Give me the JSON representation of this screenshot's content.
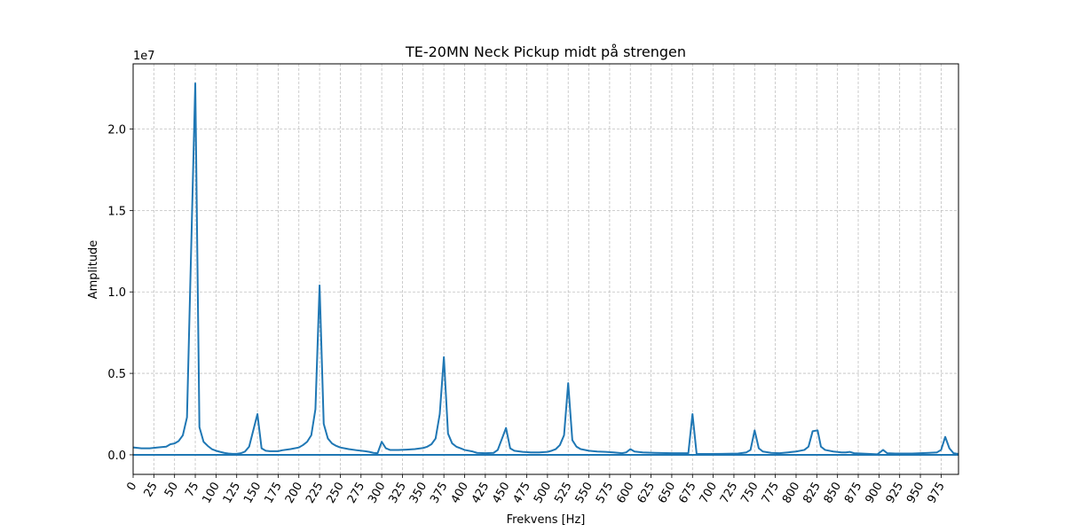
{
  "chart_data": {
    "type": "line",
    "title": "TE-20MN Neck Pickup midt på strengen",
    "xlabel": "Frekvens [Hz]",
    "ylabel": "Amplitude",
    "y_offset_label": "1e7",
    "color": "#1f77b4",
    "grid": true,
    "zero_line": 0,
    "x": [
      0,
      10,
      20,
      30,
      40,
      45,
      50,
      55,
      60,
      65,
      75,
      80,
      85,
      90,
      95,
      100,
      105,
      110,
      115,
      120,
      125,
      130,
      135,
      140,
      150,
      155,
      160,
      165,
      175,
      180,
      190,
      200,
      205,
      210,
      215,
      220,
      225,
      230,
      235,
      240,
      245,
      250,
      260,
      270,
      280,
      285,
      290,
      295,
      300,
      305,
      310,
      320,
      330,
      340,
      350,
      355,
      360,
      365,
      370,
      375,
      380,
      385,
      390,
      395,
      400,
      410,
      415,
      425,
      435,
      440,
      450,
      455,
      460,
      470,
      480,
      490,
      500,
      505,
      510,
      515,
      520,
      525,
      530,
      535,
      540,
      550,
      560,
      570,
      580,
      590,
      595,
      600,
      605,
      615,
      630,
      650,
      670,
      675,
      680,
      690,
      710,
      730,
      740,
      745,
      750,
      755,
      760,
      770,
      780,
      790,
      800,
      810,
      815,
      820,
      826,
      830,
      835,
      845,
      855,
      860,
      865,
      870,
      890,
      898,
      905,
      910,
      920,
      940,
      960,
      970,
      975,
      980,
      985,
      990,
      996
    ],
    "values": [
      450000,
      400000,
      400000,
      450000,
      500000,
      650000,
      700000,
      850000,
      1200000,
      2300000,
      22800000,
      1700000,
      800000,
      550000,
      350000,
      250000,
      180000,
      120000,
      80000,
      60000,
      60000,
      100000,
      200000,
      500000,
      2500000,
      400000,
      250000,
      220000,
      220000,
      280000,
      350000,
      450000,
      600000,
      800000,
      1200000,
      2800000,
      10400000,
      1900000,
      1000000,
      700000,
      550000,
      450000,
      350000,
      280000,
      220000,
      180000,
      120000,
      100000,
      800000,
      400000,
      300000,
      300000,
      320000,
      350000,
      420000,
      500000,
      650000,
      1000000,
      2500000,
      6000000,
      1300000,
      700000,
      500000,
      400000,
      300000,
      200000,
      120000,
      100000,
      120000,
      300000,
      1650000,
      400000,
      250000,
      180000,
      150000,
      150000,
      180000,
      250000,
      350000,
      600000,
      1200000,
      4400000,
      900000,
      500000,
      350000,
      250000,
      200000,
      180000,
      150000,
      100000,
      150000,
      350000,
      200000,
      150000,
      120000,
      100000,
      100000,
      2500000,
      50000,
      50000,
      60000,
      80000,
      150000,
      300000,
      1500000,
      400000,
      200000,
      120000,
      100000,
      150000,
      200000,
      300000,
      500000,
      1450000,
      1500000,
      500000,
      300000,
      200000,
      150000,
      150000,
      180000,
      100000,
      50000,
      30000,
      300000,
      100000,
      80000,
      80000,
      120000,
      150000,
      300000,
      1100000,
      400000,
      100000,
      50000
    ],
    "xlim": [
      0,
      996
    ],
    "ylim": [
      -1200000,
      24000000
    ],
    "xticks": [
      0,
      25,
      50,
      75,
      100,
      125,
      150,
      175,
      200,
      225,
      250,
      275,
      300,
      325,
      350,
      375,
      400,
      425,
      450,
      475,
      500,
      525,
      550,
      575,
      600,
      625,
      650,
      675,
      700,
      725,
      750,
      775,
      800,
      825,
      850,
      875,
      900,
      925,
      950,
      975
    ],
    "yticks": [
      {
        "value": 0,
        "label": "0.0"
      },
      {
        "value": 5000000,
        "label": "0.5"
      },
      {
        "value": 10000000,
        "label": "1.0"
      },
      {
        "value": 15000000,
        "label": "1.5"
      },
      {
        "value": 20000000,
        "label": "2.0"
      }
    ]
  }
}
